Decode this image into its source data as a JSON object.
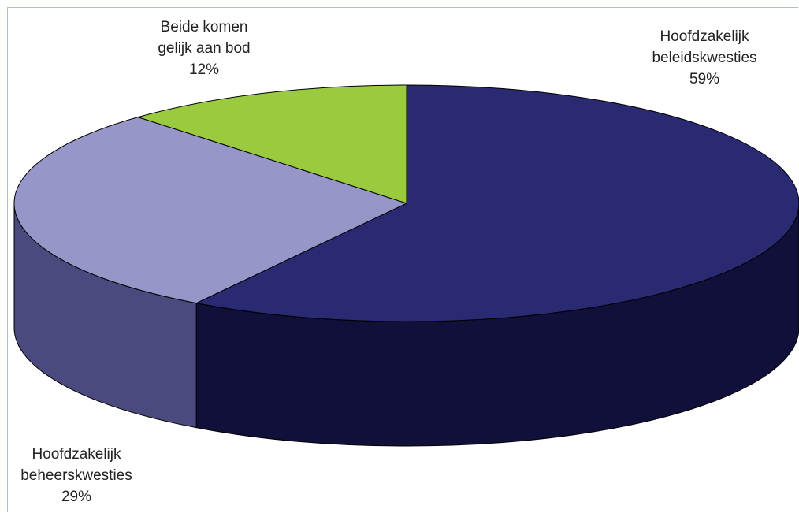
{
  "chart_data": {
    "type": "pie",
    "title": "",
    "three_d": true,
    "slices": [
      {
        "label_lines": [
          "Hoofdzakelijk",
          "beleidskwesties"
        ],
        "pct_label": "59%",
        "value": 59,
        "top_color": "#2a2a72",
        "side_color": "#10103a"
      },
      {
        "label_lines": [
          "Hoofdzakelijk",
          "beheerskwesties"
        ],
        "pct_label": "29%",
        "value": 29,
        "top_color": "#9696c8",
        "side_color": "#4a4a7e"
      },
      {
        "label_lines": [
          "Beide komen",
          "gelijk aan bod"
        ],
        "pct_label": "12%",
        "value": 12,
        "top_color": "#9acb3e",
        "side_color": "#6e9a28"
      }
    ],
    "legend": "none"
  }
}
